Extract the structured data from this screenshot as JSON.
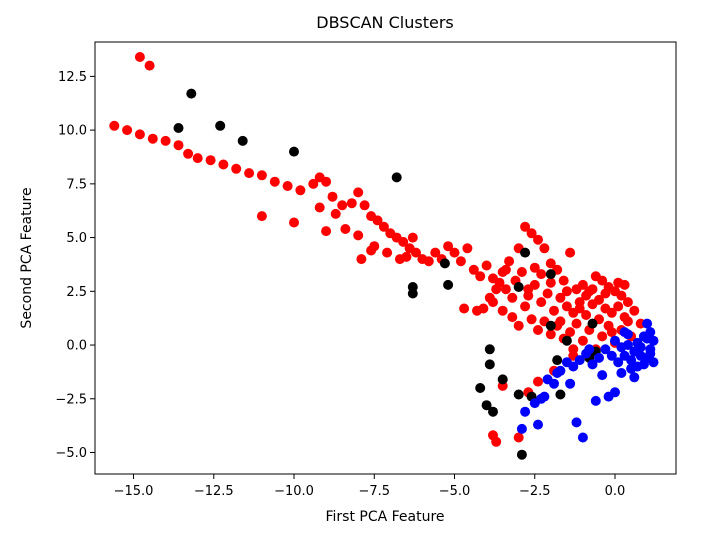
{
  "chart_data": {
    "type": "scatter",
    "title": "DBSCAN Clusters",
    "xlabel": "First PCA Feature",
    "ylabel": "Second PCA Feature",
    "xlim": [
      -16.2,
      1.9
    ],
    "ylim": [
      -6.0,
      14.1
    ],
    "xticks": [
      -15.0,
      -12.5,
      -10.0,
      -7.5,
      -5.0,
      -2.5,
      0.0
    ],
    "xtick_labels": [
      "−15.0",
      "−12.5",
      "−10.0",
      "−7.5",
      "−5.0",
      "−2.5",
      "0.0"
    ],
    "yticks": [
      -5.0,
      -2.5,
      0.0,
      2.5,
      5.0,
      7.5,
      10.0,
      12.5
    ],
    "ytick_labels": [
      "−5.0",
      "−2.5",
      "0.0",
      "2.5",
      "5.0",
      "7.5",
      "10.0",
      "12.5"
    ],
    "grid": false,
    "series": [
      {
        "color": "#ff0000",
        "points": [
          [
            -14.8,
            13.4
          ],
          [
            -14.5,
            13.0
          ],
          [
            -15.6,
            10.2
          ],
          [
            -15.2,
            10.0
          ],
          [
            -14.8,
            9.8
          ],
          [
            -14.4,
            9.6
          ],
          [
            -14.0,
            9.5
          ],
          [
            -13.6,
            9.3
          ],
          [
            -13.3,
            8.9
          ],
          [
            -13.0,
            8.7
          ],
          [
            -12.6,
            8.6
          ],
          [
            -12.2,
            8.4
          ],
          [
            -11.8,
            8.2
          ],
          [
            -11.4,
            8.0
          ],
          [
            -11.0,
            7.9
          ],
          [
            -10.6,
            7.6
          ],
          [
            -10.2,
            7.4
          ],
          [
            -9.8,
            7.2
          ],
          [
            -9.4,
            7.5
          ],
          [
            -9.2,
            7.8
          ],
          [
            -9.0,
            7.6
          ],
          [
            -8.8,
            6.9
          ],
          [
            -8.5,
            6.5
          ],
          [
            -8.2,
            6.6
          ],
          [
            -8.0,
            7.1
          ],
          [
            -7.8,
            6.5
          ],
          [
            -7.6,
            6.0
          ],
          [
            -7.4,
            5.8
          ],
          [
            -7.2,
            5.5
          ],
          [
            -7.0,
            5.2
          ],
          [
            -6.8,
            5.0
          ],
          [
            -6.6,
            4.8
          ],
          [
            -6.4,
            4.5
          ],
          [
            -6.2,
            4.3
          ],
          [
            -6.0,
            4.0
          ],
          [
            -5.8,
            3.9
          ],
          [
            -11.0,
            6.0
          ],
          [
            -10.0,
            5.7
          ],
          [
            -9.0,
            5.3
          ],
          [
            -8.0,
            5.1
          ],
          [
            -7.5,
            4.6
          ],
          [
            -7.1,
            4.3
          ],
          [
            -6.7,
            4.0
          ],
          [
            -7.9,
            4.0
          ],
          [
            -7.6,
            4.4
          ],
          [
            -8.4,
            5.4
          ],
          [
            -8.7,
            6.1
          ],
          [
            -9.2,
            6.4
          ],
          [
            -6.3,
            5.0
          ],
          [
            -6.5,
            4.1
          ],
          [
            -5.6,
            4.3
          ],
          [
            -5.4,
            4.0
          ],
          [
            -5.2,
            4.6
          ],
          [
            -5.0,
            4.3
          ],
          [
            -4.8,
            3.9
          ],
          [
            -4.6,
            4.5
          ],
          [
            -4.4,
            3.5
          ],
          [
            -4.2,
            3.2
          ],
          [
            -4.0,
            3.7
          ],
          [
            -3.8,
            3.1
          ],
          [
            -3.6,
            2.9
          ],
          [
            -3.4,
            2.6
          ],
          [
            -3.2,
            2.2
          ],
          [
            -3.0,
            4.5
          ],
          [
            -2.8,
            5.5
          ],
          [
            -2.6,
            5.2
          ],
          [
            -2.4,
            4.9
          ],
          [
            -2.2,
            4.5
          ],
          [
            -2.0,
            3.8
          ],
          [
            -1.8,
            3.5
          ],
          [
            -1.6,
            3.0
          ],
          [
            -1.4,
            4.3
          ],
          [
            -1.2,
            2.6
          ],
          [
            -1.0,
            2.8
          ],
          [
            -0.8,
            2.5
          ],
          [
            -0.6,
            3.2
          ],
          [
            -0.4,
            3.0
          ],
          [
            -0.2,
            2.7
          ],
          [
            0.0,
            2.5
          ],
          [
            0.2,
            2.3
          ],
          [
            0.4,
            2.0
          ],
          [
            0.6,
            1.6
          ],
          [
            0.8,
            1.0
          ],
          [
            0.5,
            0.4
          ],
          [
            0.3,
            1.3
          ],
          [
            0.1,
            1.8
          ],
          [
            -0.1,
            1.5
          ],
          [
            -0.3,
            1.7
          ],
          [
            -0.5,
            1.2
          ],
          [
            -0.7,
            1.9
          ],
          [
            -0.9,
            1.4
          ],
          [
            -1.1,
            2.0
          ],
          [
            -1.3,
            1.5
          ],
          [
            -1.5,
            1.8
          ],
          [
            -1.7,
            1.1
          ],
          [
            -1.9,
            1.6
          ],
          [
            -2.1,
            2.4
          ],
          [
            -2.3,
            2.0
          ],
          [
            -2.5,
            2.8
          ],
          [
            -2.7,
            2.3
          ],
          [
            -2.9,
            3.4
          ],
          [
            -3.1,
            3.0
          ],
          [
            -3.3,
            3.9
          ],
          [
            -3.5,
            3.4
          ],
          [
            -3.7,
            2.6
          ],
          [
            -3.9,
            2.2
          ],
          [
            -4.1,
            1.7
          ],
          [
            -4.3,
            1.6
          ],
          [
            -4.7,
            1.7
          ],
          [
            -3.2,
            1.3
          ],
          [
            -3.0,
            0.9
          ],
          [
            -2.8,
            1.8
          ],
          [
            -2.6,
            1.2
          ],
          [
            -2.4,
            0.7
          ],
          [
            -2.2,
            1.1
          ],
          [
            -2.0,
            0.5
          ],
          [
            -1.8,
            0.9
          ],
          [
            -1.6,
            0.3
          ],
          [
            -1.4,
            0.6
          ],
          [
            -1.2,
            1.0
          ],
          [
            -1.0,
            0.2
          ],
          [
            -0.8,
            0.7
          ],
          [
            -0.6,
            -0.2
          ],
          [
            -0.4,
            0.4
          ],
          [
            -0.2,
            0.9
          ],
          [
            0.0,
            0.1
          ],
          [
            0.2,
            0.7
          ],
          [
            0.4,
            1.1
          ],
          [
            -1.1,
            1.7
          ],
          [
            -0.9,
            2.3
          ],
          [
            -0.7,
            2.6
          ],
          [
            -0.5,
            2.1
          ],
          [
            -0.3,
            2.4
          ],
          [
            0.1,
            2.9
          ],
          [
            0.3,
            2.8
          ],
          [
            -1.5,
            2.5
          ],
          [
            -1.7,
            2.2
          ],
          [
            -2.0,
            2.9
          ],
          [
            -2.3,
            3.3
          ],
          [
            -2.5,
            3.6
          ],
          [
            -2.7,
            2.6
          ],
          [
            -3.4,
            3.5
          ],
          [
            -3.8,
            -4.2
          ],
          [
            -3.7,
            -4.5
          ],
          [
            -3.0,
            -4.3
          ],
          [
            -2.7,
            -2.2
          ],
          [
            -2.4,
            -1.7
          ],
          [
            -3.5,
            -1.9
          ],
          [
            -1.9,
            -1.2
          ],
          [
            -1.3,
            -0.5
          ],
          [
            -3.8,
            2.0
          ],
          [
            -3.5,
            1.6
          ],
          [
            -0.1,
            0.6
          ],
          [
            -1.3,
            -0.2
          ]
        ]
      },
      {
        "color": "#000000",
        "points": [
          [
            -13.2,
            11.7
          ],
          [
            -13.6,
            10.1
          ],
          [
            -12.3,
            10.2
          ],
          [
            -11.6,
            9.5
          ],
          [
            -10.0,
            9.0
          ],
          [
            -6.8,
            7.8
          ],
          [
            -6.3,
            2.7
          ],
          [
            -6.3,
            2.4
          ],
          [
            -5.3,
            3.8
          ],
          [
            -5.2,
            2.8
          ],
          [
            -4.2,
            -2.0
          ],
          [
            -3.9,
            -0.2
          ],
          [
            -3.9,
            -0.9
          ],
          [
            -3.5,
            -1.6
          ],
          [
            -4.0,
            -2.8
          ],
          [
            -3.8,
            -3.1
          ],
          [
            -3.0,
            -2.3
          ],
          [
            -2.9,
            -5.1
          ],
          [
            -2.8,
            4.3
          ],
          [
            -2.0,
            3.3
          ],
          [
            -2.0,
            0.9
          ],
          [
            -1.8,
            -0.7
          ],
          [
            -1.7,
            -2.3
          ],
          [
            -0.8,
            -0.6
          ],
          [
            -0.6,
            -0.3
          ],
          [
            -0.7,
            1.0
          ],
          [
            -3.0,
            2.7
          ],
          [
            -2.6,
            -2.4
          ],
          [
            -1.5,
            0.2
          ]
        ]
      },
      {
        "color": "#0000ff",
        "points": [
          [
            0.0,
            0.2
          ],
          [
            0.2,
            -0.1
          ],
          [
            0.4,
            0.0
          ],
          [
            0.6,
            -0.3
          ],
          [
            0.8,
            -0.5
          ],
          [
            1.0,
            -0.6
          ],
          [
            1.1,
            -0.2
          ],
          [
            1.2,
            0.2
          ],
          [
            1.1,
            0.6
          ],
          [
            1.0,
            1.0
          ],
          [
            0.9,
            -0.9
          ],
          [
            0.7,
            -1.0
          ],
          [
            0.5,
            -0.7
          ],
          [
            0.3,
            -0.5
          ],
          [
            0.1,
            -0.8
          ],
          [
            -0.1,
            -0.5
          ],
          [
            -0.3,
            -0.2
          ],
          [
            -0.5,
            -0.6
          ],
          [
            -0.7,
            -0.9
          ],
          [
            -0.9,
            -0.4
          ],
          [
            -1.1,
            -0.7
          ],
          [
            -1.3,
            -1.0
          ],
          [
            -1.5,
            -0.8
          ],
          [
            -1.7,
            -1.2
          ],
          [
            -1.9,
            -1.8
          ],
          [
            -2.1,
            -1.6
          ],
          [
            -2.3,
            -2.5
          ],
          [
            -2.5,
            -2.7
          ],
          [
            -2.8,
            -3.1
          ],
          [
            -2.9,
            -3.9
          ],
          [
            -2.4,
            -3.7
          ],
          [
            -1.2,
            -3.6
          ],
          [
            -1.0,
            -4.3
          ],
          [
            -1.4,
            -1.8
          ],
          [
            -0.6,
            -2.6
          ],
          [
            0.2,
            -1.3
          ],
          [
            0.6,
            -1.5
          ],
          [
            0.9,
            0.4
          ],
          [
            1.1,
            -0.4
          ],
          [
            0.0,
            -2.2
          ],
          [
            -0.2,
            -2.4
          ],
          [
            0.4,
            0.5
          ],
          [
            0.7,
            0.1
          ],
          [
            0.3,
            0.6
          ],
          [
            -0.4,
            -1.4
          ],
          [
            -1.8,
            -1.3
          ],
          [
            -2.2,
            -2.4
          ],
          [
            0.8,
            -0.1
          ],
          [
            1.0,
            0.3
          ],
          [
            1.2,
            -0.8
          ],
          [
            0.5,
            -1.1
          ],
          [
            -0.8,
            -0.2
          ]
        ]
      }
    ]
  }
}
